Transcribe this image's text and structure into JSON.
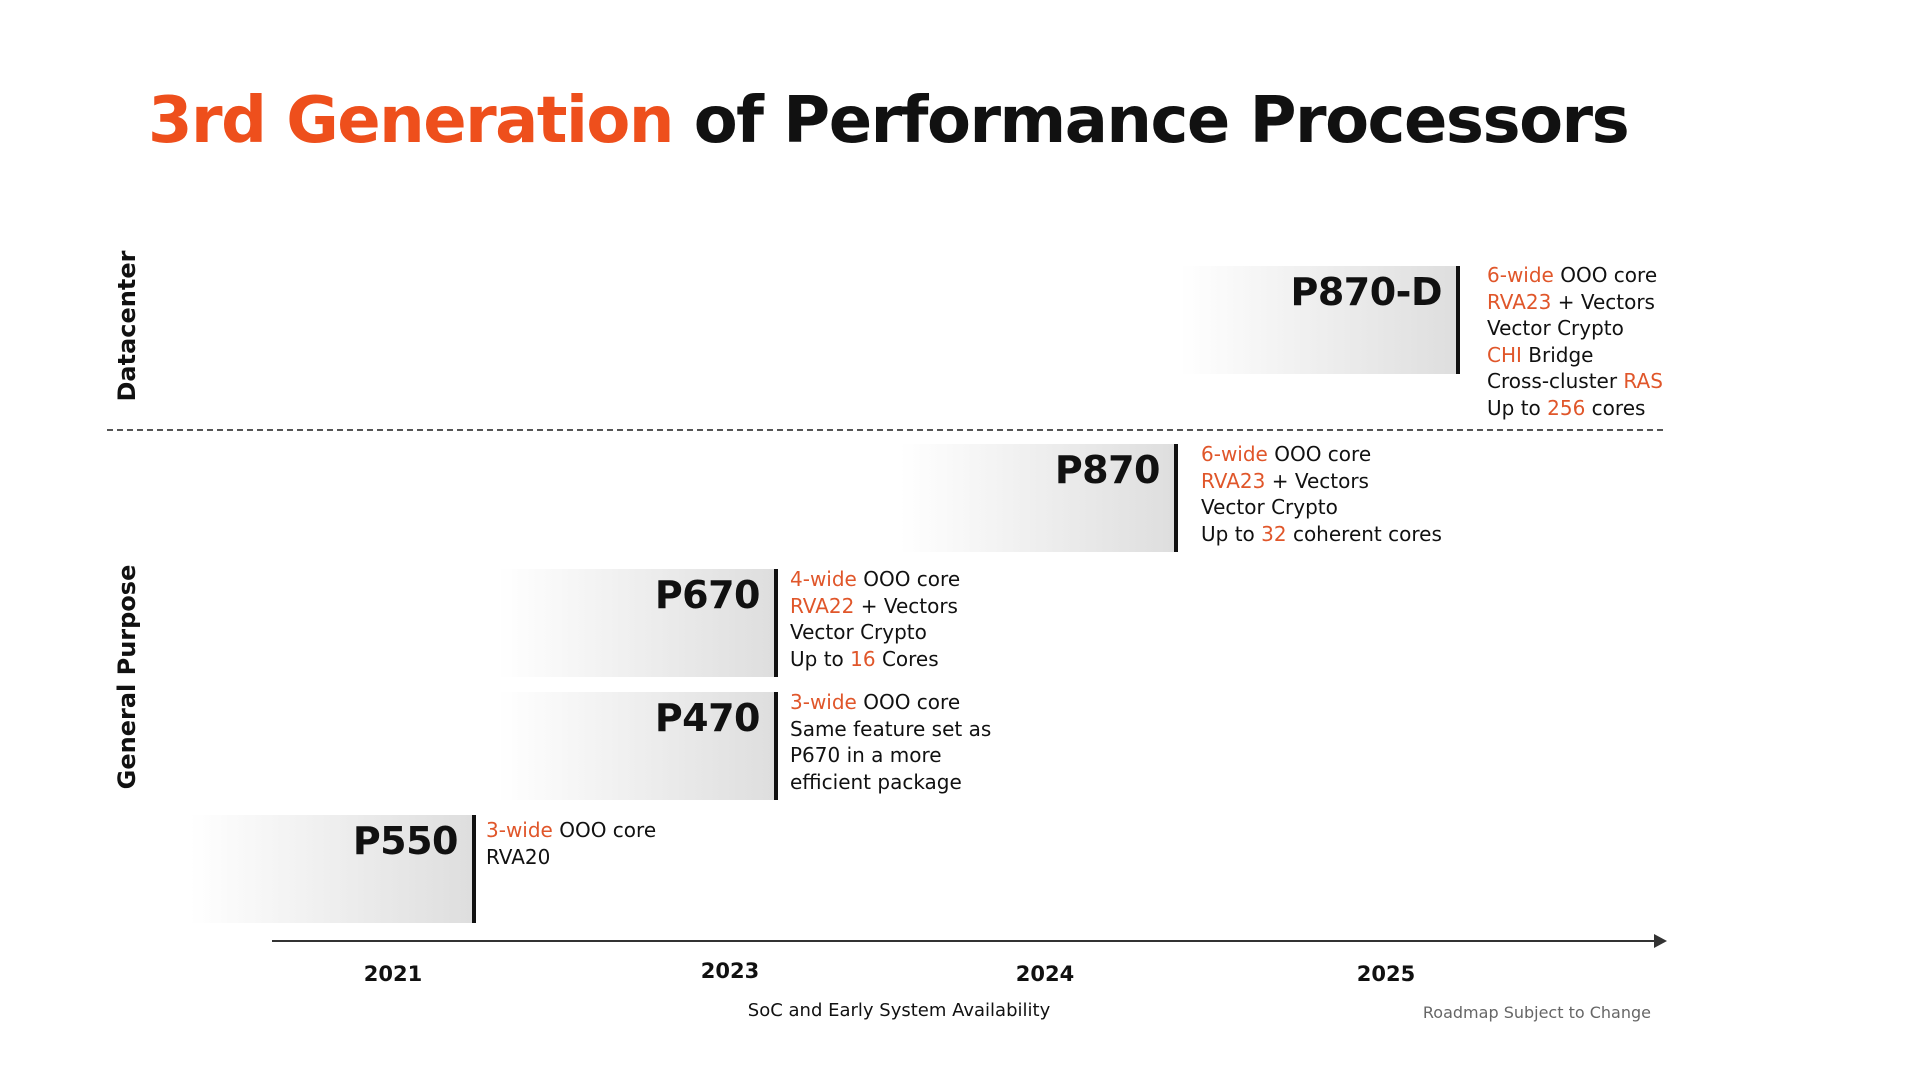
{
  "title": {
    "highlight": "3rd Generation",
    "rest": " of Performance Processors"
  },
  "regions": {
    "datacenter": "Datacenter",
    "general_purpose": "General Purpose"
  },
  "processors": [
    {
      "name": "P870-D",
      "features": [
        [
          {
            "t": "6-wide",
            "hl": true
          },
          {
            "t": " OOO core",
            "hl": false
          }
        ],
        [
          {
            "t": "RVA23",
            "hl": true
          },
          {
            "t": " + Vectors",
            "hl": false
          }
        ],
        [
          {
            "t": "Vector Crypto",
            "hl": false
          }
        ],
        [
          {
            "t": "CHI",
            "hl": true
          },
          {
            "t": " Bridge",
            "hl": false
          }
        ],
        [
          {
            "t": "Cross-cluster ",
            "hl": false
          },
          {
            "t": "RAS",
            "hl": true
          }
        ],
        [
          {
            "t": "Up to ",
            "hl": false
          },
          {
            "t": "256",
            "hl": true
          },
          {
            "t": " cores",
            "hl": false
          }
        ]
      ]
    },
    {
      "name": "P870",
      "features": [
        [
          {
            "t": "6-wide",
            "hl": true
          },
          {
            "t": " OOO core",
            "hl": false
          }
        ],
        [
          {
            "t": "RVA23",
            "hl": true
          },
          {
            "t": " + Vectors",
            "hl": false
          }
        ],
        [
          {
            "t": "Vector Crypto",
            "hl": false
          }
        ],
        [
          {
            "t": "Up to ",
            "hl": false
          },
          {
            "t": "32",
            "hl": true
          },
          {
            "t": " coherent cores",
            "hl": false
          }
        ]
      ]
    },
    {
      "name": "P670",
      "features": [
        [
          {
            "t": "4-wide",
            "hl": true
          },
          {
            "t": " OOO core",
            "hl": false
          }
        ],
        [
          {
            "t": "RVA22",
            "hl": true
          },
          {
            "t": " + Vectors",
            "hl": false
          }
        ],
        [
          {
            "t": "Vector Crypto",
            "hl": false
          }
        ],
        [
          {
            "t": "Up to ",
            "hl": false
          },
          {
            "t": "16",
            "hl": true
          },
          {
            "t": " Cores",
            "hl": false
          }
        ]
      ]
    },
    {
      "name": "P470",
      "features": [
        [
          {
            "t": "3-wide",
            "hl": true
          },
          {
            "t": " OOO core",
            "hl": false
          }
        ],
        [
          {
            "t": "Same feature set as",
            "hl": false
          }
        ],
        [
          {
            "t": "P670 in a more",
            "hl": false
          }
        ],
        [
          {
            "t": "efficient package",
            "hl": false
          }
        ]
      ]
    },
    {
      "name": "P550",
      "features": [
        [
          {
            "t": "3-wide",
            "hl": true
          },
          {
            "t": " OOO core",
            "hl": false
          }
        ],
        [
          {
            "t": "RVA20",
            "hl": false
          }
        ]
      ]
    }
  ],
  "timeline": {
    "years": [
      "2021",
      "2023",
      "2024",
      "2025"
    ],
    "axis_label": "SoC and Early System Availability"
  },
  "footnote": "Roadmap Subject to Change",
  "colors": {
    "accent": "#ee4f1c",
    "highlight_text": "#e0562a",
    "text": "#111111",
    "muted": "#666666"
  }
}
